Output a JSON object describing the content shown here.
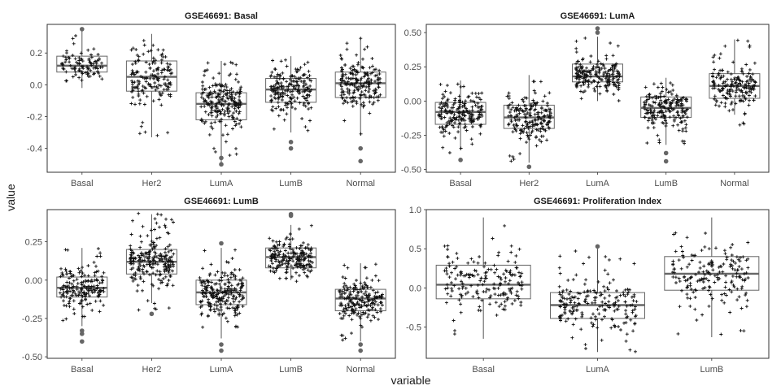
{
  "figure": {
    "xlabel": "variable",
    "ylabel": "value"
  },
  "chart_data": [
    {
      "type": "box",
      "title": "GSE46691: Basal",
      "categories": [
        "Basal",
        "Her2",
        "LumA",
        "LumB",
        "Normal"
      ],
      "ylim": [
        -0.55,
        0.38
      ],
      "yticks": [
        -0.4,
        -0.2,
        0.0,
        0.2
      ],
      "ytick_labels": [
        "-0.4",
        "-0.2",
        "0.0",
        "0.2"
      ],
      "boxes": [
        {
          "category": "Basal",
          "whisker_low": -0.02,
          "q1": 0.08,
          "median": 0.12,
          "q3": 0.18,
          "whisker_high": 0.35,
          "outliers": [
            0.35
          ],
          "n": 100,
          "jitter_min": -0.02,
          "jitter_max": 0.35
        },
        {
          "category": "Her2",
          "whisker_low": -0.33,
          "q1": -0.04,
          "median": 0.05,
          "q3": 0.15,
          "whisker_high": 0.32,
          "outliers": [],
          "n": 160,
          "jitter_min": -0.33,
          "jitter_max": 0.33
        },
        {
          "category": "LumA",
          "whisker_low": -0.5,
          "q1": -0.22,
          "median": -0.12,
          "q3": -0.05,
          "whisker_high": 0.15,
          "outliers": [
            -0.46,
            -0.5
          ],
          "n": 220,
          "jitter_min": -0.45,
          "jitter_max": 0.15
        },
        {
          "category": "LumB",
          "whisker_low": -0.3,
          "q1": -0.11,
          "median": -0.03,
          "q3": 0.04,
          "whisker_high": 0.18,
          "outliers": [
            -0.36,
            -0.4
          ],
          "n": 200,
          "jitter_min": -0.3,
          "jitter_max": 0.18
        },
        {
          "category": "Normal",
          "whisker_low": -0.32,
          "q1": -0.08,
          "median": 0.01,
          "q3": 0.08,
          "whisker_high": 0.3,
          "outliers": [
            -0.4,
            -0.48
          ],
          "n": 200,
          "jitter_min": -0.32,
          "jitter_max": 0.31
        }
      ]
    },
    {
      "type": "box",
      "title": "GSE46691: LumA",
      "categories": [
        "Basal",
        "Her2",
        "LumA",
        "LumB",
        "Normal"
      ],
      "ylim": [
        -0.52,
        0.56
      ],
      "yticks": [
        -0.5,
        -0.25,
        0.0,
        0.25,
        0.5
      ],
      "ytick_labels": [
        "-0.50",
        "-0.25",
        "0.00",
        "0.25",
        "0.50"
      ],
      "boxes": [
        {
          "category": "Basal",
          "whisker_low": -0.36,
          "q1": -0.17,
          "median": -0.08,
          "q3": -0.01,
          "whisker_high": 0.15,
          "outliers": [
            -0.43
          ],
          "n": 200,
          "jitter_min": -0.38,
          "jitter_max": 0.15
        },
        {
          "category": "Her2",
          "whisker_low": -0.45,
          "q1": -0.2,
          "median": -0.12,
          "q3": -0.03,
          "whisker_high": 0.19,
          "outliers": [
            -0.48
          ],
          "n": 200,
          "jitter_min": -0.45,
          "jitter_max": 0.19
        },
        {
          "category": "LumA",
          "whisker_low": 0.0,
          "q1": 0.14,
          "median": 0.18,
          "q3": 0.27,
          "whisker_high": 0.47,
          "outliers": [
            0.5,
            0.53
          ],
          "n": 200,
          "jitter_min": 0.0,
          "jitter_max": 0.47
        },
        {
          "category": "LumB",
          "whisker_low": -0.32,
          "q1": -0.12,
          "median": -0.05,
          "q3": 0.03,
          "whisker_high": 0.17,
          "outliers": [
            -0.38,
            -0.44
          ],
          "n": 200,
          "jitter_min": -0.32,
          "jitter_max": 0.17
        },
        {
          "category": "Normal",
          "whisker_low": -0.1,
          "q1": 0.02,
          "median": 0.11,
          "q3": 0.2,
          "whisker_high": 0.45,
          "outliers": [],
          "n": 180,
          "jitter_min": -0.19,
          "jitter_max": 0.46
        }
      ]
    },
    {
      "type": "box",
      "title": "GSE46691: LumB",
      "categories": [
        "Basal",
        "Her2",
        "LumA",
        "LumB",
        "Normal"
      ],
      "ylim": [
        -0.51,
        0.46
      ],
      "yticks": [
        -0.5,
        -0.25,
        0.0,
        0.25
      ],
      "ytick_labels": [
        "-0.50",
        "-0.25",
        "0.00",
        "0.25"
      ],
      "boxes": [
        {
          "category": "Basal",
          "whisker_low": -0.3,
          "q1": -0.11,
          "median": -0.05,
          "q3": 0.02,
          "whisker_high": 0.21,
          "outliers": [
            -0.33,
            -0.35,
            -0.4
          ],
          "n": 180,
          "jitter_min": -0.3,
          "jitter_max": 0.21
        },
        {
          "category": "Her2",
          "whisker_low": -0.15,
          "q1": 0.04,
          "median": 0.12,
          "q3": 0.2,
          "whisker_high": 0.43,
          "outliers": [
            -0.22
          ],
          "n": 220,
          "jitter_min": -0.2,
          "jitter_max": 0.44
        },
        {
          "category": "LumA",
          "whisker_low": -0.38,
          "q1": -0.16,
          "median": -0.08,
          "q3": 0.0,
          "whisker_high": 0.21,
          "outliers": [
            0.24,
            -0.42,
            -0.46
          ],
          "n": 220,
          "jitter_min": -0.38,
          "jitter_max": 0.21
        },
        {
          "category": "LumB",
          "whisker_low": 0.0,
          "q1": 0.08,
          "median": 0.15,
          "q3": 0.21,
          "whisker_high": 0.36,
          "outliers": [
            0.42,
            0.43
          ],
          "n": 200,
          "jitter_min": -0.02,
          "jitter_max": 0.36
        },
        {
          "category": "Normal",
          "whisker_low": -0.4,
          "q1": -0.2,
          "median": -0.12,
          "q3": -0.06,
          "whisker_high": 0.11,
          "outliers": [
            -0.42,
            -0.46
          ],
          "n": 200,
          "jitter_min": -0.4,
          "jitter_max": 0.12
        }
      ]
    },
    {
      "type": "box",
      "title": "GSE46691: Proliferation Index",
      "categories": [
        "Basal",
        "LumA",
        "LumB"
      ],
      "ylim": [
        -0.9,
        1.0
      ],
      "yticks": [
        -0.5,
        0.0,
        0.5,
        1.0
      ],
      "ytick_labels": [
        "-0.5",
        "0.0",
        "0.5",
        "1.0"
      ],
      "boxes": [
        {
          "category": "Basal",
          "whisker_low": -0.65,
          "q1": -0.14,
          "median": 0.04,
          "q3": 0.29,
          "whisker_high": 0.9,
          "outliers": [],
          "n": 180,
          "jitter_min": -0.65,
          "jitter_max": 0.91
        },
        {
          "category": "LumA",
          "whisker_low": -0.82,
          "q1": -0.39,
          "median": -0.22,
          "q3": -0.06,
          "whisker_high": 0.5,
          "outliers": [
            0.53
          ],
          "n": 200,
          "jitter_min": -0.82,
          "jitter_max": 0.5
        },
        {
          "category": "LumB",
          "whisker_low": -0.63,
          "q1": -0.03,
          "median": 0.18,
          "q3": 0.4,
          "whisker_high": 0.9,
          "outliers": [],
          "n": 180,
          "jitter_min": -0.63,
          "jitter_max": 0.92
        }
      ]
    }
  ]
}
